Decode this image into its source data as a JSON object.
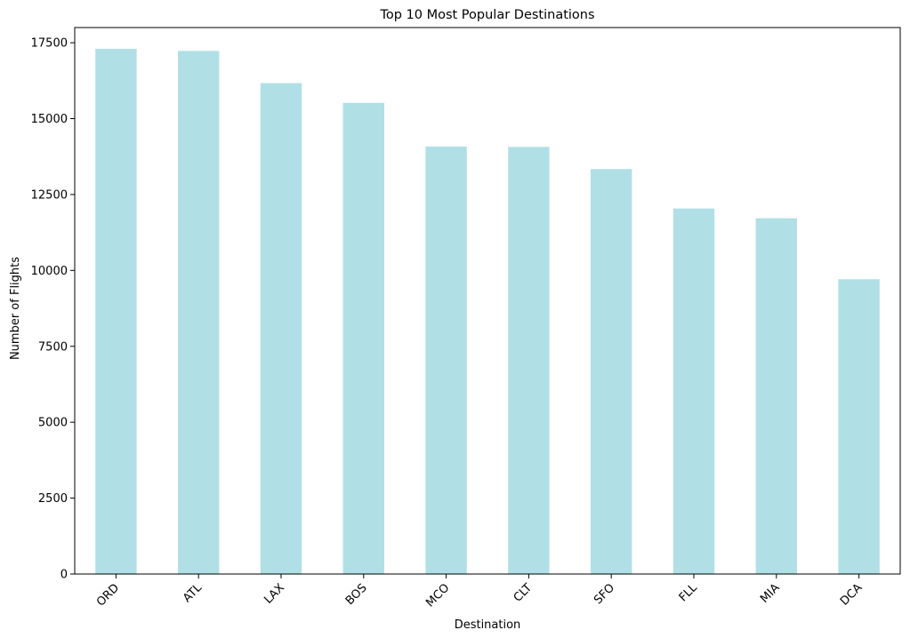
{
  "chart_data": {
    "type": "bar",
    "title": "Top 10 Most Popular Destinations",
    "xlabel": "Destination",
    "ylabel": "Number of Flights",
    "categories": [
      "ORD",
      "ATL",
      "LAX",
      "BOS",
      "MCO",
      "CLT",
      "SFO",
      "FLL",
      "MIA",
      "DCA"
    ],
    "values": [
      17300,
      17230,
      16170,
      15520,
      14080,
      14070,
      13340,
      12040,
      11720,
      9710
    ],
    "ylim": [
      0,
      18000
    ],
    "yticks": [
      0,
      2500,
      5000,
      7500,
      10000,
      12500,
      15000,
      17500
    ],
    "ytick_labels": [
      "0",
      "2500",
      "5000",
      "7500",
      "10000",
      "12500",
      "15000",
      "17500"
    ],
    "grid": false,
    "legend": "none",
    "bar_color": "#b0e0e6",
    "xtick_rotation": 45
  }
}
